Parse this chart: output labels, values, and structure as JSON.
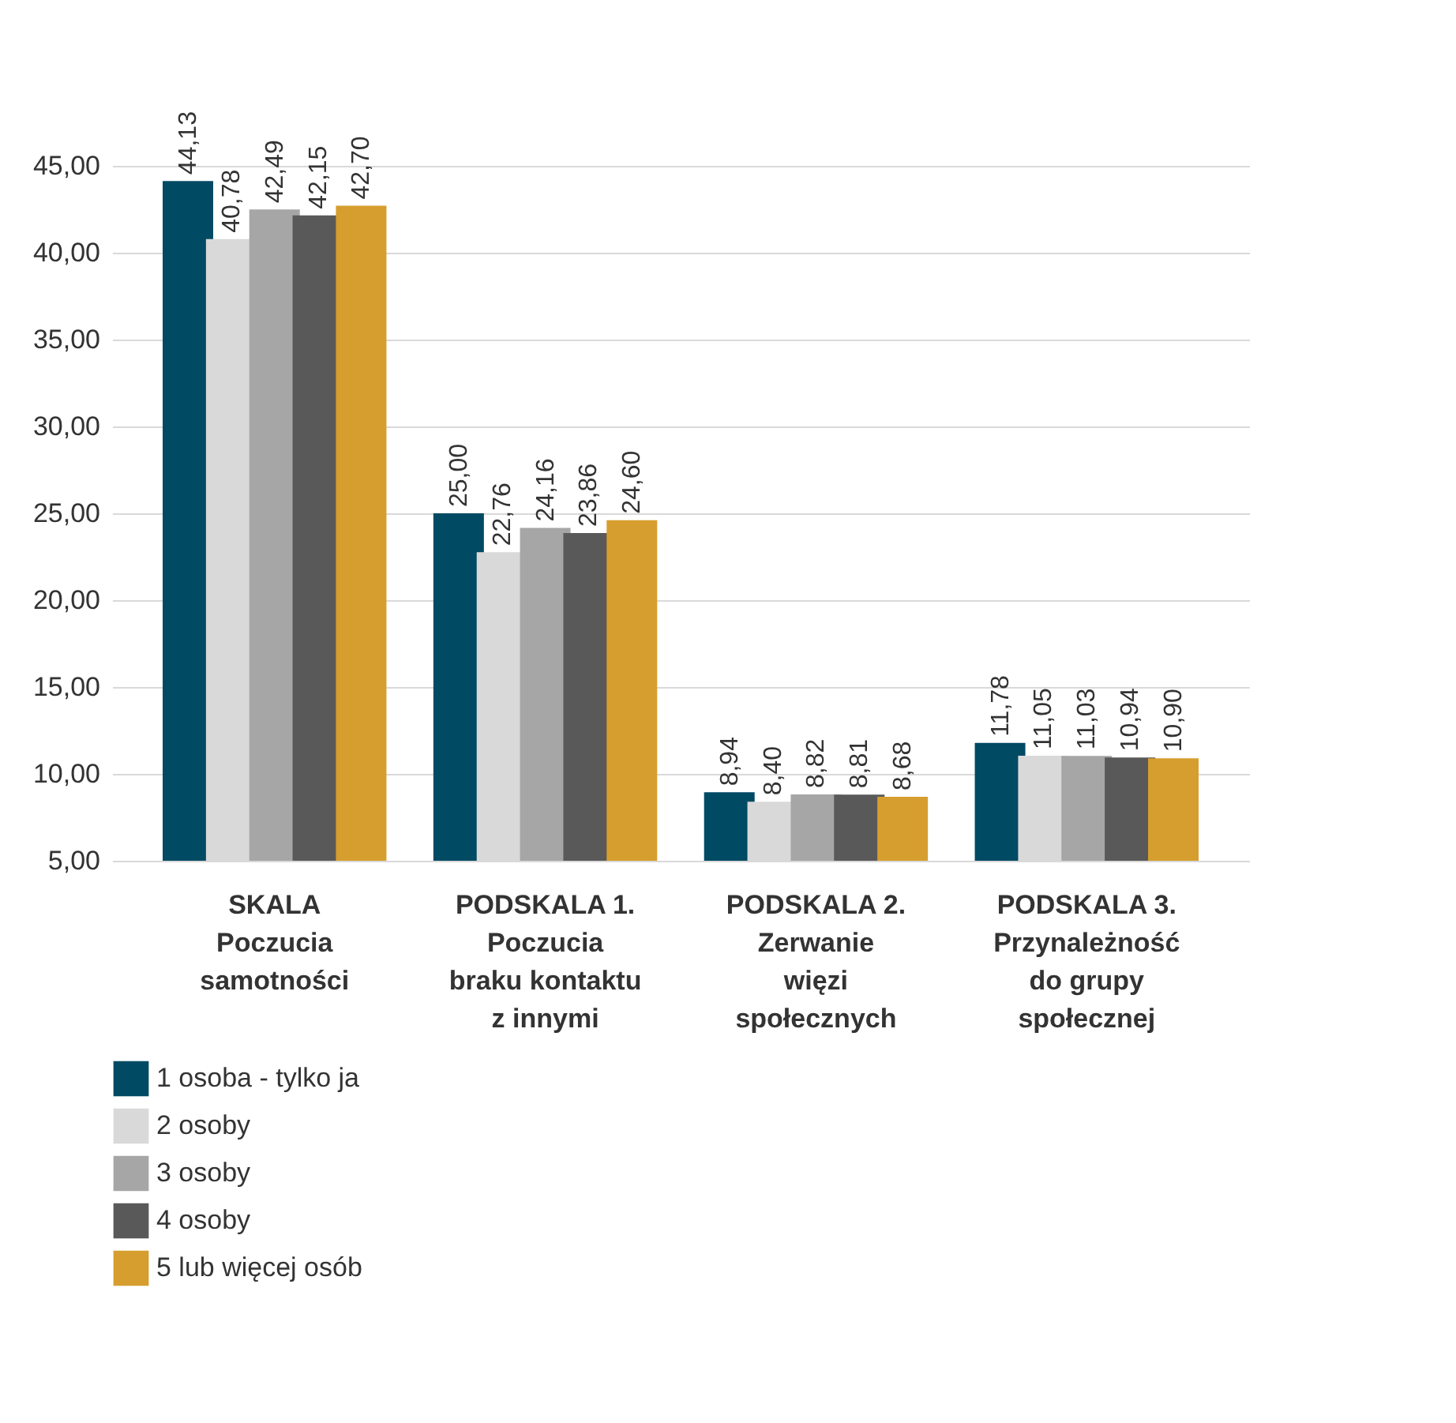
{
  "chart_data": {
    "type": "bar",
    "categories": [
      "SKALA\nPoczucia\nsamotności",
      "PODSKALA 1.\nPoczucia\nbraku kontaktu\nz innymi",
      "PODSKALA 2.\nZerwanie\nwięzi\nspołecznych",
      "PODSKALA 3.\nPrzynależność\ndo grupy\nspołecznej"
    ],
    "series": [
      {
        "name": "1 osoba - tylko ja",
        "color": "#004a63",
        "values": [
          44.13,
          25.0,
          8.94,
          11.78
        ],
        "value_labels": [
          "44,13",
          "25,00",
          "8,94",
          "11,78"
        ]
      },
      {
        "name": "2 osoby",
        "color": "#d9d9d9",
        "values": [
          40.78,
          22.76,
          8.4,
          11.05
        ],
        "value_labels": [
          "40,78",
          "22,76",
          "8,40",
          "11,05"
        ]
      },
      {
        "name": "3 osoby",
        "color": "#a6a6a6",
        "values": [
          42.49,
          24.16,
          8.82,
          11.03
        ],
        "value_labels": [
          "42,49",
          "24,16",
          "8,82",
          "11,03"
        ]
      },
      {
        "name": "4 osoby",
        "color": "#595959",
        "values": [
          42.15,
          23.86,
          8.81,
          10.94
        ],
        "value_labels": [
          "42,15",
          "23,86",
          "8,81",
          "10,94"
        ]
      },
      {
        "name": "5 lub więcej osób",
        "color": "#d69e2e",
        "values": [
          42.7,
          24.6,
          8.68,
          10.9
        ],
        "value_labels": [
          "42,70",
          "24,60",
          "8,68",
          "10,90"
        ]
      }
    ],
    "ylim": [
      5,
      45
    ],
    "yticks": [
      {
        "value": 5,
        "label": "5,00"
      },
      {
        "value": 10,
        "label": "10,00"
      },
      {
        "value": 15,
        "label": "15,00"
      },
      {
        "value": 20,
        "label": "20,00"
      },
      {
        "value": 25,
        "label": "25,00"
      },
      {
        "value": 30,
        "label": "30,00"
      },
      {
        "value": 35,
        "label": "35,00"
      },
      {
        "value": 40,
        "label": "40,00"
      },
      {
        "value": 45,
        "label": "45,00"
      }
    ],
    "grid": "y",
    "legend": "bottom left"
  }
}
